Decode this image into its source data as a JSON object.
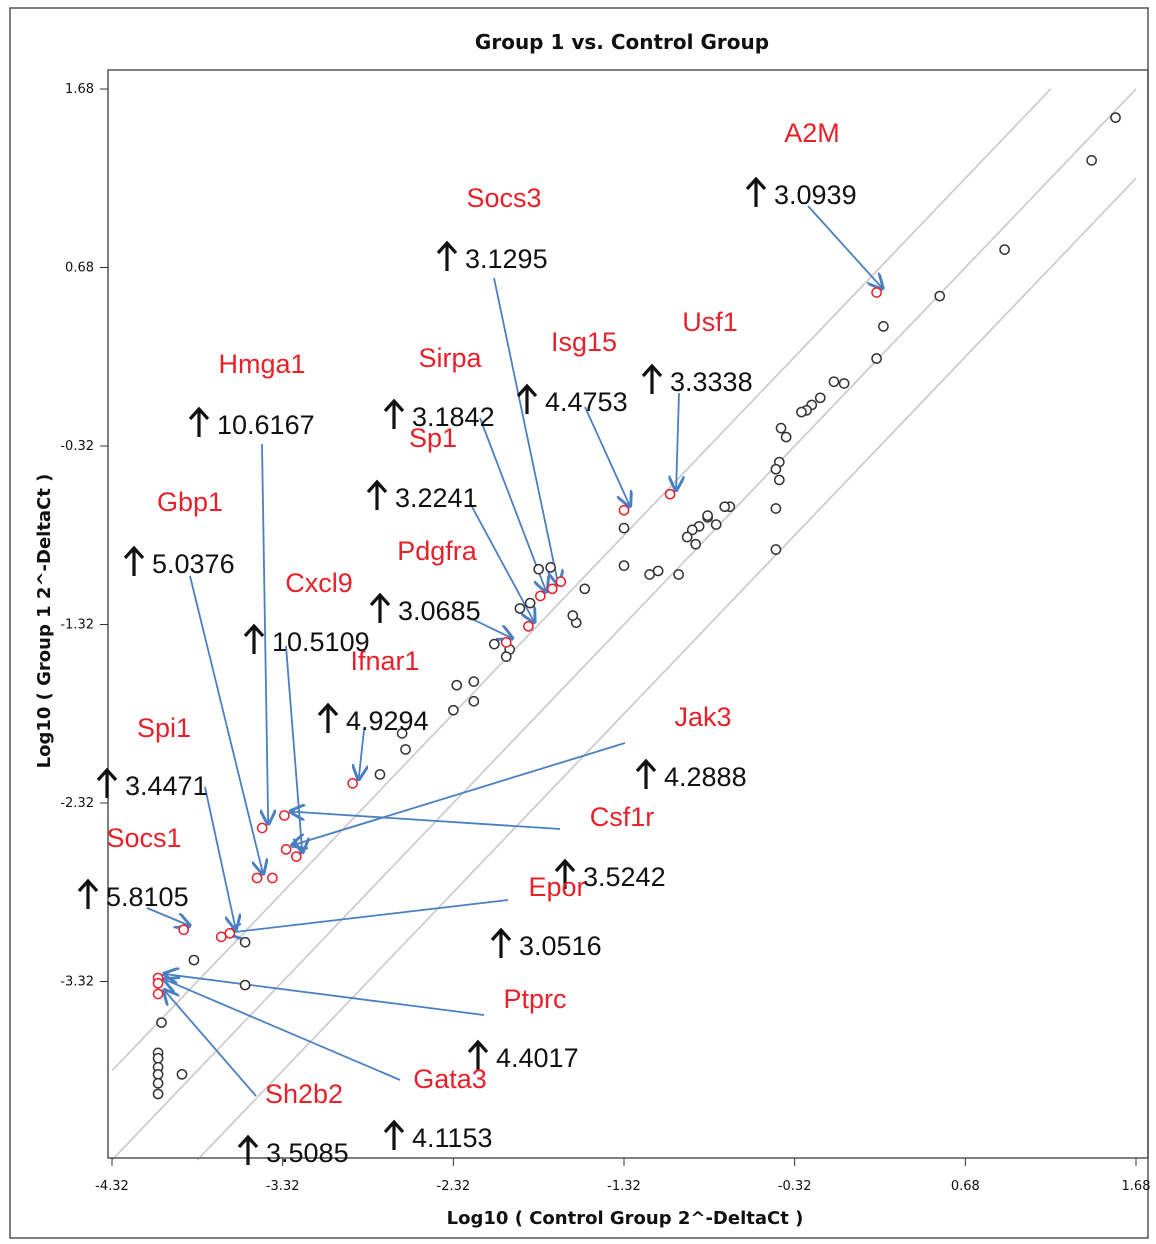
{
  "chart_data": {
    "type": "scatter",
    "title": "Group 1 vs. Control Group",
    "xlabel": "Log10 ( Control Group 2^-DeltaCt )",
    "ylabel": "Log10 ( Group 1 2^-DeltaCt )",
    "xlim": [
      -4.32,
      1.68
    ],
    "ylim": [
      -4.32,
      1.68
    ],
    "x_ticks": [
      "-4.32",
      "-3.32",
      "-2.32",
      "-1.32",
      "-0.32",
      "0.68",
      "1.68"
    ],
    "y_ticks": [
      "1.68",
      "0.68",
      "-0.32",
      "-1.32",
      "-2.32",
      "-3.32"
    ],
    "reference_lines": [
      {
        "offset": 0.5
      },
      {
        "offset": 0
      },
      {
        "offset": -0.5
      }
    ],
    "colors": {
      "upregulated": "#e8202a",
      "unchanged": "#333333",
      "arrow": "#4a7fc1",
      "line": "#c8c8c8"
    },
    "series": [
      {
        "points": [
          [
            1.56,
            1.52
          ],
          [
            1.42,
            1.28
          ],
          [
            0.91,
            0.78
          ],
          [
            0.53,
            0.52
          ],
          [
            0.2,
            0.35
          ],
          [
            0.16,
            0.17
          ],
          [
            -0.03,
            0.03
          ],
          [
            -0.09,
            0.04
          ],
          [
            -0.17,
            -0.05
          ],
          [
            -0.22,
            -0.09
          ],
          [
            -0.25,
            -0.12
          ],
          [
            -0.28,
            -0.13
          ],
          [
            -0.37,
            -0.27
          ],
          [
            -0.4,
            -0.22
          ],
          [
            -0.41,
            -0.41
          ],
          [
            -0.41,
            -0.51
          ],
          [
            -0.43,
            -0.45
          ],
          [
            -0.43,
            -0.67
          ],
          [
            -0.43,
            -0.9
          ],
          [
            -0.7,
            -0.66
          ],
          [
            -0.73,
            -0.66
          ],
          [
            -0.78,
            -0.76
          ],
          [
            -0.83,
            -0.72
          ],
          [
            -0.83,
            -0.71
          ],
          [
            -0.88,
            -0.77
          ],
          [
            -0.9,
            -0.87
          ],
          [
            -0.92,
            -0.79
          ],
          [
            -0.95,
            -0.83
          ],
          [
            -1.0,
            -1.04
          ],
          [
            -1.12,
            -1.02
          ],
          [
            -1.17,
            -1.04
          ],
          [
            -1.32,
            -0.99
          ],
          [
            -1.32,
            -0.78
          ],
          [
            -1.55,
            -1.12
          ],
          [
            -1.6,
            -1.31
          ],
          [
            -1.62,
            -1.27
          ],
          [
            -1.75,
            -1.0
          ],
          [
            -1.82,
            -1.01
          ],
          [
            -1.87,
            -1.2
          ],
          [
            -1.93,
            -1.23
          ],
          [
            -1.99,
            -1.46
          ],
          [
            -2.01,
            -1.5
          ],
          [
            -2.08,
            -1.43
          ],
          [
            -2.2,
            -1.64
          ],
          [
            -2.2,
            -1.75
          ],
          [
            -2.3,
            -1.66
          ],
          [
            -2.32,
            -1.8
          ],
          [
            -2.62,
            -1.93
          ],
          [
            -2.6,
            -2.02
          ],
          [
            -2.75,
            -2.16
          ],
          [
            -3.54,
            -3.1
          ],
          [
            -3.54,
            -3.34
          ],
          [
            -3.84,
            -3.2
          ],
          [
            -4.03,
            -3.55
          ],
          [
            -4.05,
            -3.72
          ],
          [
            -4.05,
            -3.75
          ],
          [
            -4.05,
            -3.8
          ],
          [
            -4.05,
            -3.84
          ],
          [
            -4.05,
            -3.89
          ],
          [
            -4.05,
            -3.95
          ],
          [
            -3.91,
            -3.84
          ]
        ]
      },
      {
        "points": [
          [
            0.16,
            0.54
          ],
          [
            -1.05,
            -0.59
          ],
          [
            -1.32,
            -0.68
          ],
          [
            -1.69,
            -1.08
          ],
          [
            -1.74,
            -1.12
          ],
          [
            -1.81,
            -1.16
          ],
          [
            -1.88,
            -1.33
          ],
          [
            -2.01,
            -1.42
          ],
          [
            -2.91,
            -2.21
          ],
          [
            -3.31,
            -2.39
          ],
          [
            -3.44,
            -2.46
          ],
          [
            -3.3,
            -2.58
          ],
          [
            -3.24,
            -2.62
          ],
          [
            -3.47,
            -2.74
          ],
          [
            -3.38,
            -2.74
          ],
          [
            -3.63,
            -3.05
          ],
          [
            -3.68,
            -3.07
          ],
          [
            -3.9,
            -3.03
          ],
          [
            -4.05,
            -3.3
          ],
          [
            -4.05,
            -3.33
          ],
          [
            -4.05,
            -3.39
          ]
        ]
      }
    ],
    "annotations": [
      {
        "gene": "A2M",
        "fold": "3.0939"
      },
      {
        "gene": "Socs3",
        "fold": "3.1295"
      },
      {
        "gene": "Usf1",
        "fold": "3.3338"
      },
      {
        "gene": "Isg15",
        "fold": "4.4753"
      },
      {
        "gene": "Sirpa",
        "fold": "3.1842"
      },
      {
        "gene": "Hmga1",
        "fold": "10.6167"
      },
      {
        "gene": "Sp1",
        "fold": "3.2241"
      },
      {
        "gene": "Gbp1",
        "fold": "5.0376"
      },
      {
        "gene": "Pdgfra",
        "fold": "3.0685"
      },
      {
        "gene": "Cxcl9",
        "fold": "10.5109"
      },
      {
        "gene": "Ifnar1",
        "fold": "4.9294"
      },
      {
        "gene": "Spi1",
        "fold": "3.4471"
      },
      {
        "gene": "Jak3",
        "fold": "4.2888"
      },
      {
        "gene": "Csf1r",
        "fold": "3.5242"
      },
      {
        "gene": "Socs1",
        "fold": "5.8105"
      },
      {
        "gene": "Epor",
        "fold": "3.0516"
      },
      {
        "gene": "Ptprc",
        "fold": "4.4017"
      },
      {
        "gene": "Gata3",
        "fold": "4.1153"
      },
      {
        "gene": "Sh2b2",
        "fold": "3.5085"
      }
    ]
  }
}
